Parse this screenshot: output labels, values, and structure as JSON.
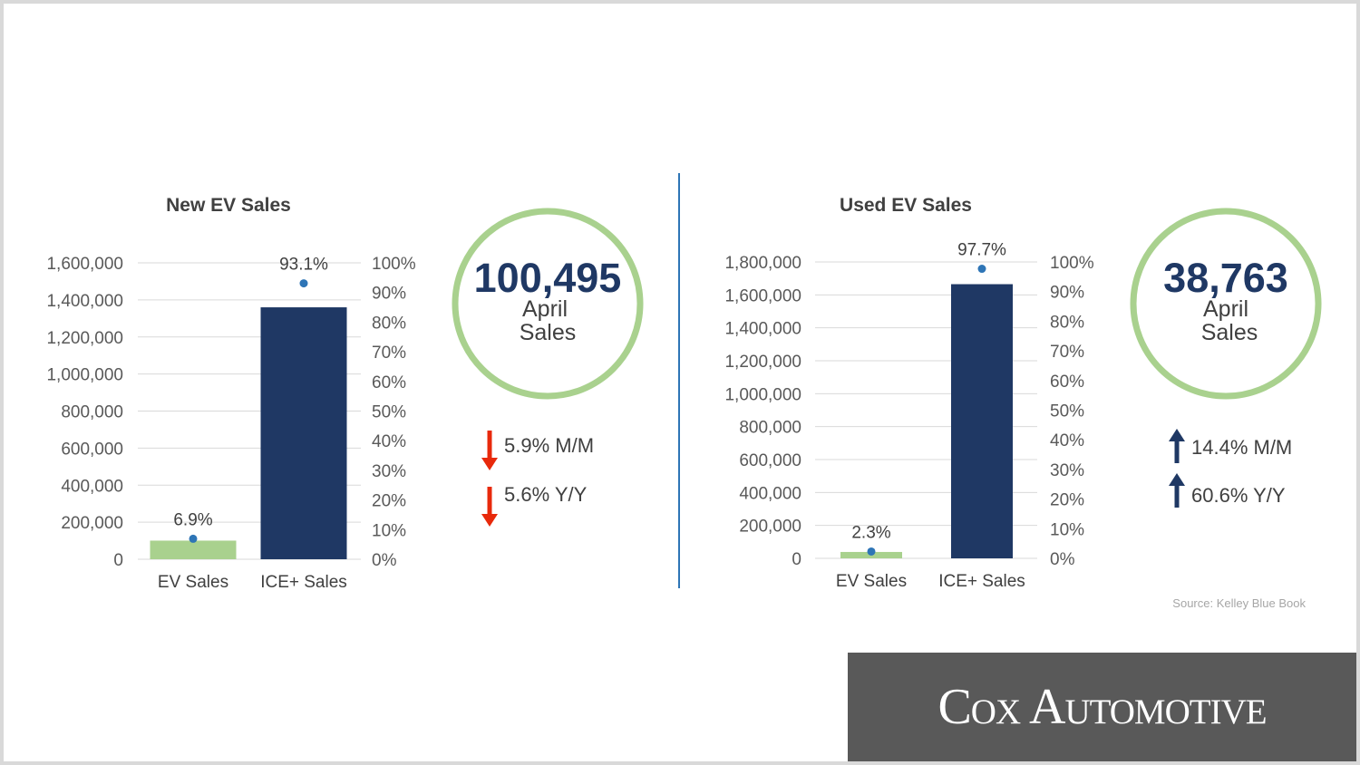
{
  "colors": {
    "ev": "#a9d18e",
    "ice": "#1f3864",
    "dot": "#2e75b6",
    "ring": "#a9d18e",
    "down": "#e8290b",
    "up": "#1f3864",
    "divider": "#2e75b6"
  },
  "chart_data": [
    {
      "type": "bar",
      "title": "New EV Sales",
      "categories": [
        "EV Sales",
        "ICE+ Sales"
      ],
      "values": [
        100495,
        1360000
      ],
      "ylim": [
        0,
        1600000
      ],
      "yticks": [
        0,
        200000,
        400000,
        600000,
        800000,
        1000000,
        1200000,
        1400000,
        1600000
      ],
      "ytick_labels": [
        "0",
        "200,000",
        "400,000",
        "600,000",
        "800,000",
        "1,000,000",
        "1,200,000",
        "1,400,000",
        "1,600,000"
      ],
      "share_series": {
        "type": "scatter",
        "values": [
          6.9,
          93.1
        ],
        "labels": [
          "6.9%",
          "93.1%"
        ]
      },
      "y2lim": [
        0,
        100
      ],
      "y2ticks": [
        0,
        10,
        20,
        30,
        40,
        50,
        60,
        70,
        80,
        90,
        100
      ],
      "y2tick_labels": [
        "0%",
        "10%",
        "20%",
        "30%",
        "40%",
        "50%",
        "60%",
        "70%",
        "80%",
        "90%",
        "100%"
      ],
      "grid": true
    },
    {
      "type": "bar",
      "title": "Used EV Sales",
      "categories": [
        "EV Sales",
        "ICE+ Sales"
      ],
      "values": [
        38763,
        1665000
      ],
      "ylim": [
        0,
        1800000
      ],
      "yticks": [
        0,
        200000,
        400000,
        600000,
        800000,
        1000000,
        1200000,
        1400000,
        1600000,
        1800000
      ],
      "ytick_labels": [
        "0",
        "200,000",
        "400,000",
        "600,000",
        "800,000",
        "1,000,000",
        "1,200,000",
        "1,400,000",
        "1,600,000",
        "1,800,000"
      ],
      "share_series": {
        "type": "scatter",
        "values": [
          2.3,
          97.7
        ],
        "labels": [
          "2.3%",
          "97.7%"
        ]
      },
      "y2lim": [
        0,
        100
      ],
      "y2ticks": [
        0,
        10,
        20,
        30,
        40,
        50,
        60,
        70,
        80,
        90,
        100
      ],
      "y2tick_labels": [
        "0%",
        "10%",
        "20%",
        "30%",
        "40%",
        "50%",
        "60%",
        "70%",
        "80%",
        "90%",
        "100%"
      ],
      "grid": true
    }
  ],
  "summaries": [
    {
      "number": "100,495",
      "line1": "April",
      "line2": "Sales",
      "changes": [
        {
          "direction": "down",
          "text": "5.9% M/M"
        },
        {
          "direction": "down",
          "text": "5.6% Y/Y"
        }
      ]
    },
    {
      "number": "38,763",
      "line1": "April",
      "line2": "Sales",
      "changes": [
        {
          "direction": "up",
          "text": "14.4% M/M"
        },
        {
          "direction": "up",
          "text": "60.6% Y/Y"
        }
      ]
    }
  ],
  "source": "Source: Kelley Blue Book",
  "logo": "Cox Automotive"
}
